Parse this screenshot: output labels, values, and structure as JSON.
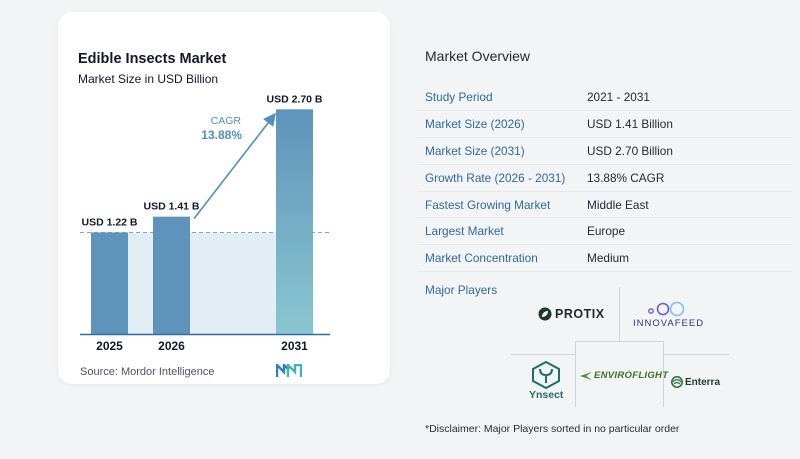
{
  "header": {
    "title": "Edible Insects Market",
    "subtitle": "Market Size in USD Billion"
  },
  "chart_data": {
    "type": "bar",
    "categories": [
      "2025",
      "2026",
      "2031"
    ],
    "values": [
      1.22,
      1.41,
      2.7
    ],
    "value_labels": [
      "USD 1.22 B",
      "USD 1.41 B",
      "USD 2.70 B"
    ],
    "ylim": [
      0,
      2.8
    ],
    "grid": false,
    "cagr_label": "CAGR",
    "cagr_value": "13.88%",
    "bar_colors": [
      "#5e93bb",
      "#5e93bb",
      "#79b4c9"
    ],
    "baseline_color": "#2f6fa0",
    "band_color": "#e3edf4"
  },
  "footer": {
    "source": "Source:  Mordor Intelligence"
  },
  "overview": {
    "title": "Market Overview",
    "rows": [
      {
        "label": "Study Period",
        "value": "2021 - 2031"
      },
      {
        "label": "Market Size (2026)",
        "value": "USD 1.41 Billion"
      },
      {
        "label": "Market Size (2031)",
        "value": "USD 2.70 Billion"
      },
      {
        "label": "Growth Rate (2026 - 2031)",
        "value": "13.88% CAGR"
      },
      {
        "label": "Fastest Growing Market",
        "value": "Middle East"
      },
      {
        "label": "Largest Market",
        "value": "Europe"
      },
      {
        "label": "Market Concentration",
        "value": "Medium"
      }
    ]
  },
  "players": {
    "title": "Major Players",
    "logos": {
      "protix": "PROTIX",
      "innovafeed": "INNOVAFEED",
      "ynsect": "Ynsect",
      "enviroflight": "ENVIROFLIGHT",
      "enterra": "Enterra"
    }
  },
  "disclaimer": "*Disclaimer: Major Players sorted in no particular order",
  "colors": {
    "accent": "#2d6a9f",
    "arrow": "#4f8fbe",
    "cagr_text": "#4f8fbe"
  }
}
